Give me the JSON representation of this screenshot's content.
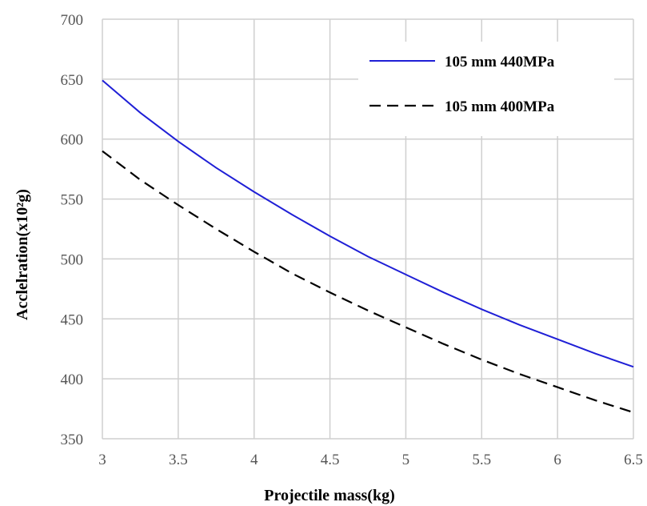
{
  "chart_data": {
    "type": "line",
    "xlabel": "Projectile mass(kg)",
    "ylabel": "Acclelration(x10²g)",
    "xlim": [
      3,
      6.5
    ],
    "ylim": [
      350,
      700
    ],
    "xticks": [
      "3",
      "3.5",
      "4",
      "4.5",
      "5",
      "5.5",
      "6",
      "6.5"
    ],
    "yticks": [
      "350",
      "400",
      "450",
      "500",
      "550",
      "600",
      "650",
      "700"
    ],
    "grid": true,
    "legend_position": "top-right",
    "series": [
      {
        "name": "105 mm 440MPa",
        "color": "#1f1fd6",
        "dash": "solid",
        "x": [
          3,
          3.25,
          3.5,
          3.75,
          4,
          4.25,
          4.5,
          4.75,
          5,
          5.25,
          5.5,
          5.75,
          6,
          6.25,
          6.5
        ],
        "y": [
          649,
          622,
          598,
          576,
          556,
          537,
          519,
          502,
          487,
          472,
          458,
          445,
          433,
          421,
          410
        ]
      },
      {
        "name": "105 mm 400MPa",
        "color": "#000000",
        "dash": "dashed",
        "x": [
          3,
          3.25,
          3.5,
          3.75,
          4,
          4.25,
          4.5,
          4.75,
          5,
          5.25,
          5.5,
          5.75,
          6,
          6.25,
          6.5
        ],
        "y": [
          590,
          566,
          545,
          525,
          506,
          488,
          472,
          457,
          443,
          429,
          416,
          404,
          393,
          382,
          372
        ]
      }
    ]
  }
}
